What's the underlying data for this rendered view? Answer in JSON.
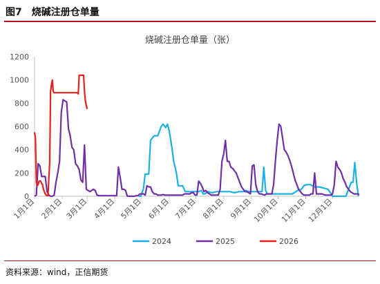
{
  "header": {
    "figure_label": "图7　烧碱注册仓单量"
  },
  "footer": {
    "source": "资料来源：wind，正信期货"
  },
  "colors": {
    "accent_rule": "#b5121b",
    "series_2024": "#1ab0e6",
    "series_2025": "#6f2da8",
    "series_2026": "#e8201e"
  },
  "chart_data": {
    "type": "line",
    "title": "烧碱注册仓单量（张）",
    "xlabel": "",
    "ylabel": "",
    "ylim": [
      0,
      1200
    ],
    "yticks": [
      "0",
      "200",
      "400",
      "600",
      "800",
      "1000",
      "1200"
    ],
    "xlim_day_of_year": [
      1,
      365
    ],
    "xticks": [
      {
        "label": "1月1日",
        "day": 1
      },
      {
        "label": "2月1日",
        "day": 32
      },
      {
        "label": "3月1日",
        "day": 60
      },
      {
        "label": "4月1日",
        "day": 91
      },
      {
        "label": "5月1日",
        "day": 121
      },
      {
        "label": "6月1日",
        "day": 152
      },
      {
        "label": "7月1日",
        "day": 182
      },
      {
        "label": "8月1日",
        "day": 213
      },
      {
        "label": "9月1日",
        "day": 244
      },
      {
        "label": "10月1日",
        "day": 274
      },
      {
        "label": "11月1日",
        "day": 305
      },
      {
        "label": "12月1日",
        "day": 335
      }
    ],
    "grid": false,
    "legend_position": "bottom",
    "series": [
      {
        "name": "2024",
        "color": "#1ab0e6",
        "x_day_of_year": [
          118,
          120,
          123,
          125,
          127,
          129,
          131,
          133,
          135,
          137,
          139,
          141,
          143,
          145,
          148,
          150,
          152,
          155,
          157,
          160,
          162,
          165,
          167,
          170,
          173,
          176,
          179,
          182,
          185,
          188,
          190,
          192,
          195,
          200,
          205,
          210,
          215,
          220,
          225,
          230,
          235,
          238,
          241,
          243,
          245,
          247,
          249,
          251,
          253,
          256,
          258,
          260,
          262,
          265,
          270,
          275,
          280,
          285,
          290,
          296,
          300,
          303,
          306,
          310,
          315,
          320,
          325,
          330,
          335,
          340,
          345,
          350,
          354,
          356,
          358,
          360,
          362,
          364
        ],
        "y_values": [
          0,
          0,
          60,
          190,
          190,
          190,
          480,
          500,
          520,
          520,
          520,
          560,
          600,
          620,
          590,
          620,
          560,
          420,
          300,
          200,
          90,
          90,
          90,
          40,
          40,
          40,
          40,
          40,
          40,
          50,
          20,
          20,
          40,
          30,
          40,
          40,
          40,
          40,
          30,
          40,
          40,
          50,
          40,
          40,
          40,
          40,
          40,
          40,
          40,
          40,
          250,
          50,
          20,
          20,
          20,
          20,
          20,
          20,
          20,
          50,
          60,
          90,
          100,
          100,
          80,
          80,
          70,
          60,
          0,
          0,
          0,
          0,
          80,
          120,
          120,
          290,
          120,
          0
        ]
      },
      {
        "name": "2025",
        "color": "#6f2da8",
        "x_day_of_year": [
          1,
          3,
          5,
          7,
          9,
          11,
          13,
          15,
          17,
          19,
          21,
          23,
          25,
          27,
          29,
          31,
          33,
          35,
          37,
          39,
          41,
          43,
          45,
          47,
          49,
          51,
          53,
          55,
          57,
          59,
          61,
          63,
          65,
          67,
          69,
          71,
          73,
          75,
          77,
          79,
          81,
          83,
          85,
          87,
          89,
          91,
          93,
          95,
          97,
          99,
          101,
          103,
          105,
          107,
          109,
          111,
          113,
          115,
          117,
          119,
          121,
          123,
          125,
          127,
          129,
          131,
          133,
          135,
          137,
          139,
          141,
          143,
          145,
          147,
          149,
          151,
          153,
          155,
          157,
          159,
          161,
          163,
          165,
          167,
          169,
          171,
          173,
          175,
          177,
          179,
          181,
          183,
          185,
          187,
          189,
          191,
          193,
          195,
          197,
          199,
          201,
          203,
          205,
          207,
          209,
          211,
          213,
          215,
          217,
          219,
          221,
          223,
          225,
          227,
          229,
          231,
          233,
          235,
          237,
          239,
          241,
          243,
          245,
          247,
          249,
          251,
          253,
          255,
          257,
          259,
          261,
          263,
          265,
          267,
          269,
          271,
          273,
          275,
          277,
          279,
          281,
          283,
          285,
          287,
          289,
          291,
          293,
          295,
          297,
          299,
          301,
          303,
          305,
          307,
          309,
          311,
          313,
          315,
          317,
          319,
          321,
          323,
          325,
          327,
          329,
          331,
          333,
          335,
          337,
          339,
          341,
          343,
          345,
          347,
          349,
          351,
          353,
          355,
          357,
          359,
          361,
          363,
          365
        ],
        "y_values": [
          0,
          10,
          280,
          260,
          170,
          170,
          170,
          40,
          10,
          0,
          0,
          10,
          120,
          200,
          300,
          720,
          830,
          820,
          810,
          580,
          520,
          420,
          400,
          280,
          260,
          230,
          140,
          120,
          440,
          60,
          50,
          40,
          50,
          60,
          50,
          10,
          5,
          5,
          5,
          5,
          5,
          5,
          5,
          5,
          5,
          5,
          5,
          250,
          160,
          60,
          60,
          50,
          0,
          0,
          0,
          0,
          0,
          5,
          5,
          20,
          20,
          20,
          10,
          90,
          80,
          80,
          40,
          20,
          20,
          10,
          10,
          10,
          15,
          10,
          10,
          10,
          10,
          10,
          10,
          10,
          10,
          10,
          10,
          10,
          20,
          20,
          20,
          20,
          30,
          30,
          10,
          10,
          130,
          110,
          80,
          40,
          50,
          30,
          20,
          10,
          10,
          10,
          10,
          10,
          60,
          300,
          360,
          480,
          300,
          300,
          250,
          240,
          220,
          200,
          160,
          120,
          80,
          60,
          40,
          40,
          30,
          20,
          260,
          270,
          100,
          40,
          20,
          20,
          15,
          10,
          20,
          20,
          20,
          20,
          100,
          300,
          480,
          620,
          600,
          500,
          400,
          380,
          350,
          310,
          260,
          200,
          140,
          100,
          60,
          40,
          20,
          10,
          10,
          10,
          10,
          20,
          20,
          200,
          20,
          20,
          20,
          20,
          15,
          10,
          10,
          10,
          10,
          20,
          100,
          300,
          250,
          230,
          200,
          150,
          120,
          80,
          60,
          40,
          30,
          20,
          20,
          20,
          15
        ]
      },
      {
        "name": "2026",
        "color": "#e8201e",
        "x_day_of_year": [
          1,
          2,
          3,
          4,
          5,
          6,
          7,
          8,
          9,
          10,
          11,
          12,
          13,
          14,
          15,
          16,
          17,
          18,
          19,
          20,
          21,
          22,
          23,
          24,
          25,
          26,
          27,
          28,
          29,
          30,
          31,
          32,
          33,
          34,
          35,
          36,
          37,
          38,
          39,
          40,
          41,
          42,
          43,
          44,
          45,
          46,
          47,
          48,
          49,
          50,
          51,
          52,
          53,
          54,
          55,
          56,
          57,
          58,
          59,
          60
        ],
        "y_values": [
          550,
          500,
          120,
          90,
          100,
          130,
          130,
          130,
          110,
          100,
          60,
          40,
          20,
          10,
          5,
          5,
          150,
          300,
          900,
          960,
          1000,
          900,
          890,
          890,
          890,
          890,
          890,
          890,
          890,
          890,
          890,
          890,
          890,
          890,
          890,
          890,
          890,
          890,
          890,
          890,
          890,
          890,
          890,
          890,
          890,
          890,
          890,
          890,
          890,
          880,
          1040,
          1040,
          1040,
          1040,
          1040,
          1040,
          900,
          820,
          780,
          750
        ]
      }
    ]
  }
}
